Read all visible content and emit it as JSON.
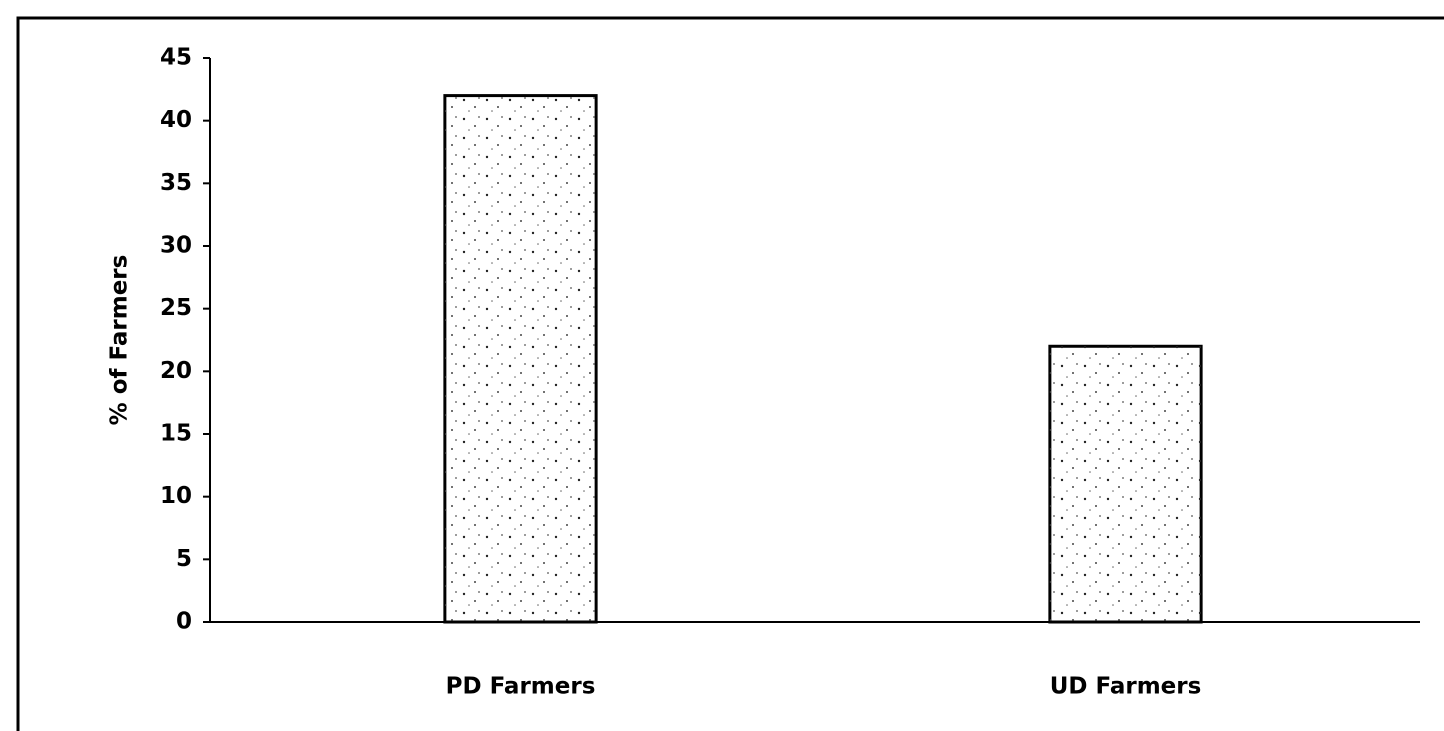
{
  "chart_data": {
    "type": "bar",
    "y_label": "% of Farmers",
    "categories": [
      "PD Farmers",
      "UD Farmers"
    ],
    "values": [
      42,
      22
    ],
    "color": "#ffffff",
    "ylim": [
      0,
      45
    ],
    "yticks": [
      0,
      5,
      10,
      15,
      20,
      25,
      30,
      35,
      40,
      45
    ],
    "grid": false
  }
}
